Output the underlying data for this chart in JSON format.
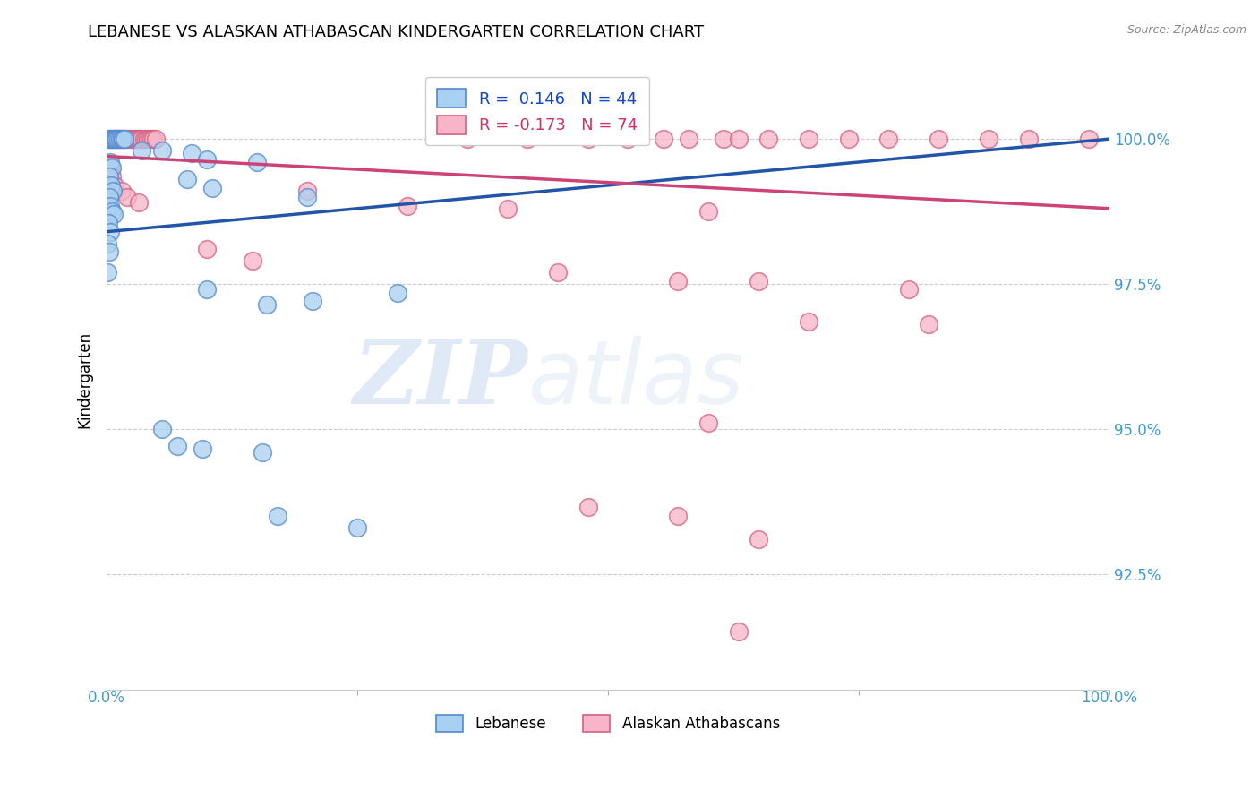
{
  "title": "LEBANESE VS ALASKAN ATHABASCAN KINDERGARTEN CORRELATION CHART",
  "source": "Source: ZipAtlas.com",
  "ylabel": "Kindergarten",
  "xlim": [
    0.0,
    100.0
  ],
  "ylim": [
    90.5,
    101.2
  ],
  "legend_R_blue": "0.146",
  "legend_N_blue": "44",
  "legend_R_pink": "-0.173",
  "legend_N_pink": "74",
  "legend_label_blue": "Lebanese",
  "legend_label_pink": "Alaskan Athabascans",
  "blue_color": "#a8d0f0",
  "pink_color": "#f8b4c8",
  "blue_edge_color": "#5588cc",
  "pink_edge_color": "#d46080",
  "blue_line_color": "#2255aa",
  "pink_line_color": "#cc4477",
  "blue_text_color": "#1144cc",
  "pink_text_color": "#cc3366",
  "ytick_color": "#4499cc",
  "watermark_zip": "ZIP",
  "watermark_atlas": "atlas",
  "blue_scatter": [
    [
      0.15,
      100.0
    ],
    [
      0.4,
      100.0
    ],
    [
      0.55,
      100.0
    ],
    [
      0.7,
      100.0
    ],
    [
      0.85,
      100.0
    ],
    [
      1.0,
      100.0
    ],
    [
      1.15,
      100.0
    ],
    [
      1.3,
      100.0
    ],
    [
      1.45,
      100.0
    ],
    [
      1.6,
      100.0
    ],
    [
      1.75,
      100.0
    ],
    [
      0.3,
      99.6
    ],
    [
      0.5,
      99.5
    ],
    [
      0.25,
      99.35
    ],
    [
      0.45,
      99.2
    ],
    [
      0.6,
      99.1
    ],
    [
      0.2,
      99.0
    ],
    [
      0.35,
      98.85
    ],
    [
      0.5,
      98.75
    ],
    [
      0.65,
      98.7
    ],
    [
      0.15,
      98.55
    ],
    [
      0.3,
      98.4
    ],
    [
      0.1,
      98.2
    ],
    [
      0.2,
      98.05
    ],
    [
      0.1,
      97.7
    ],
    [
      3.5,
      99.8
    ],
    [
      5.5,
      99.8
    ],
    [
      8.5,
      99.75
    ],
    [
      10.0,
      99.65
    ],
    [
      15.0,
      99.6
    ],
    [
      8.0,
      99.3
    ],
    [
      10.5,
      99.15
    ],
    [
      20.0,
      99.0
    ],
    [
      10.0,
      97.4
    ],
    [
      16.0,
      97.15
    ],
    [
      20.5,
      97.2
    ],
    [
      29.0,
      97.35
    ],
    [
      5.5,
      95.0
    ],
    [
      7.0,
      94.7
    ],
    [
      9.5,
      94.65
    ],
    [
      15.5,
      94.6
    ],
    [
      17.0,
      93.5
    ],
    [
      25.0,
      93.3
    ]
  ],
  "pink_scatter": [
    [
      0.2,
      100.0
    ],
    [
      0.5,
      100.0
    ],
    [
      0.75,
      100.0
    ],
    [
      0.95,
      100.0
    ],
    [
      1.15,
      100.0
    ],
    [
      1.35,
      100.0
    ],
    [
      1.55,
      100.0
    ],
    [
      1.75,
      100.0
    ],
    [
      1.95,
      100.0
    ],
    [
      2.15,
      100.0
    ],
    [
      2.35,
      100.0
    ],
    [
      2.55,
      100.0
    ],
    [
      2.75,
      100.0
    ],
    [
      2.95,
      100.0
    ],
    [
      3.1,
      100.0
    ],
    [
      3.3,
      100.0
    ],
    [
      3.5,
      100.0
    ],
    [
      3.7,
      100.0
    ],
    [
      3.9,
      100.0
    ],
    [
      4.05,
      100.0
    ],
    [
      4.25,
      100.0
    ],
    [
      4.45,
      100.0
    ],
    [
      4.65,
      100.0
    ],
    [
      4.85,
      100.0
    ],
    [
      36.0,
      100.0
    ],
    [
      42.0,
      100.0
    ],
    [
      48.0,
      100.0
    ],
    [
      52.0,
      100.0
    ],
    [
      55.5,
      100.0
    ],
    [
      58.0,
      100.0
    ],
    [
      61.5,
      100.0
    ],
    [
      63.0,
      100.0
    ],
    [
      66.0,
      100.0
    ],
    [
      70.0,
      100.0
    ],
    [
      74.0,
      100.0
    ],
    [
      78.0,
      100.0
    ],
    [
      83.0,
      100.0
    ],
    [
      88.0,
      100.0
    ],
    [
      92.0,
      100.0
    ],
    [
      98.0,
      100.0
    ],
    [
      0.35,
      99.5
    ],
    [
      0.55,
      99.35
    ],
    [
      0.75,
      99.2
    ],
    [
      1.5,
      99.1
    ],
    [
      2.0,
      99.0
    ],
    [
      3.2,
      98.9
    ],
    [
      20.0,
      99.1
    ],
    [
      30.0,
      98.85
    ],
    [
      40.0,
      98.8
    ],
    [
      60.0,
      98.75
    ],
    [
      10.0,
      98.1
    ],
    [
      14.5,
      97.9
    ],
    [
      45.0,
      97.7
    ],
    [
      57.0,
      97.55
    ],
    [
      65.0,
      97.55
    ],
    [
      80.0,
      97.4
    ],
    [
      70.0,
      96.85
    ],
    [
      82.0,
      96.8
    ],
    [
      60.0,
      95.1
    ],
    [
      48.0,
      93.65
    ],
    [
      57.0,
      93.5
    ],
    [
      65.0,
      93.1
    ],
    [
      63.0,
      91.5
    ]
  ],
  "blue_trendline": [
    [
      0,
      98.4
    ],
    [
      100,
      100.0
    ]
  ],
  "pink_trendline": [
    [
      0,
      99.7
    ],
    [
      100,
      98.8
    ]
  ]
}
